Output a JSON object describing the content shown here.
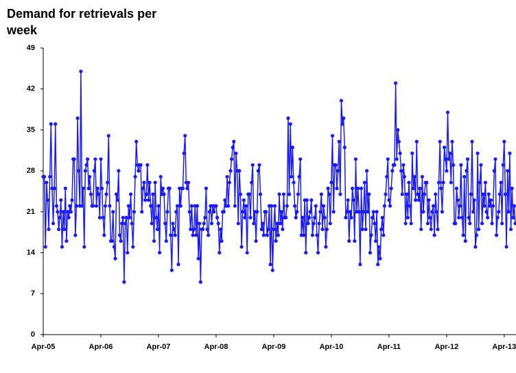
{
  "chart_data": {
    "type": "line",
    "title": "Demand for retrievals per week",
    "x": [
      0,
      1,
      2,
      3,
      4,
      5,
      6,
      7,
      8,
      9,
      10,
      11,
      12,
      13,
      14,
      15,
      16,
      17,
      18,
      19,
      20,
      21,
      22,
      23,
      24,
      25,
      26,
      27,
      28,
      29,
      30,
      31,
      32,
      33,
      34,
      35,
      36,
      37,
      38,
      39,
      40,
      41,
      42,
      43,
      44,
      45,
      46,
      47,
      48,
      49,
      50,
      51,
      52,
      53,
      54,
      55,
      56,
      57,
      58,
      59,
      60,
      61,
      62,
      63,
      64,
      65,
      66,
      67,
      68,
      69,
      70,
      71,
      72,
      73,
      74,
      75,
      76,
      77,
      78,
      79,
      80,
      81,
      82,
      83,
      84,
      85,
      86,
      87,
      88,
      89,
      90,
      91,
      92,
      93,
      94,
      95,
      96,
      97,
      98,
      99,
      100,
      101,
      102,
      103,
      104,
      105,
      106,
      107,
      108,
      109,
      110,
      111,
      112,
      113,
      114,
      115,
      116,
      117,
      118,
      119,
      120,
      121,
      122,
      123,
      124,
      125,
      126,
      127,
      128,
      129,
      130,
      131,
      132,
      133,
      134,
      135,
      136,
      137,
      138,
      139,
      140,
      141,
      142,
      143,
      144,
      145,
      146,
      147,
      148,
      149,
      150,
      151,
      152,
      153,
      154,
      155,
      156,
      157,
      158,
      159,
      160,
      161,
      162,
      163,
      164,
      165,
      166,
      167,
      168,
      169,
      170,
      171,
      172,
      173,
      174,
      175,
      176,
      177,
      178,
      179,
      180,
      181,
      182,
      183,
      184,
      185,
      186,
      187,
      188,
      189,
      190,
      191,
      192,
      193,
      194,
      195,
      196,
      197,
      198,
      199,
      200,
      201,
      202,
      203,
      204,
      205,
      206,
      207,
      208,
      209,
      210,
      211,
      212,
      213,
      214,
      215,
      216,
      217,
      218,
      219,
      220,
      221,
      222,
      223,
      224,
      225,
      226,
      227,
      228,
      229,
      230,
      231,
      232,
      233,
      234,
      235,
      236,
      237,
      238,
      239,
      240,
      241,
      242,
      243,
      244,
      245,
      246,
      247,
      248,
      249,
      250,
      251,
      252,
      253,
      254,
      255,
      256,
      257,
      258,
      259,
      260,
      261,
      262,
      263,
      264,
      265,
      266,
      267,
      268,
      269,
      270,
      271,
      272,
      273,
      274,
      275,
      276,
      277,
      278,
      279,
      280,
      281,
      282,
      283,
      284,
      285,
      286,
      287,
      288,
      289,
      290,
      291,
      292,
      293,
      294,
      295,
      296,
      297,
      298,
      299,
      300,
      301,
      302,
      303,
      304,
      305,
      306,
      307,
      308,
      309,
      310,
      311,
      312,
      313,
      314,
      315,
      316,
      317,
      318,
      319,
      320,
      321,
      322,
      323,
      324,
      325,
      326,
      327,
      328,
      329,
      330,
      331,
      332,
      333,
      334,
      335,
      336,
      337,
      338,
      339,
      340,
      341,
      342,
      343,
      344,
      345,
      346,
      347,
      348,
      349,
      350,
      351,
      352,
      353,
      354,
      355,
      356,
      357,
      358,
      359,
      360,
      361,
      362,
      363,
      364,
      365,
      366,
      367,
      368,
      369,
      370,
      371,
      372,
      373,
      374,
      375,
      376,
      377,
      378,
      379,
      380,
      381,
      382,
      383,
      384,
      385,
      386,
      387,
      388,
      389,
      390,
      391,
      392,
      393,
      394,
      395,
      396,
      397,
      398,
      399,
      400,
      401,
      402,
      403,
      404,
      405,
      406,
      407,
      408,
      409,
      410,
      411,
      412,
      413,
      414,
      415,
      416,
      417,
      418,
      419,
      420,
      421,
      422,
      423,
      424,
      425,
      426
    ],
    "series": [
      {
        "color": "#1a1aff",
        "values": [
          27,
          27,
          15,
          26,
          23,
          18,
          27,
          36,
          25,
          19,
          25,
          36,
          22,
          21,
          18,
          20,
          23,
          15,
          21,
          18,
          25,
          16,
          21,
          20,
          22,
          21,
          23,
          30,
          30,
          17,
          22,
          37,
          28,
          22,
          45,
          22,
          25,
          15,
          28,
          29,
          30,
          25,
          27,
          24,
          22,
          22,
          28,
          30,
          22,
          25,
          24,
          20,
          30,
          25,
          20,
          17,
          22,
          24,
          26,
          34,
          22,
          16,
          16,
          21,
          15,
          13,
          24,
          23,
          28,
          17,
          16,
          19,
          20,
          9,
          19,
          20,
          14,
          22,
          20,
          24,
          19,
          15,
          21,
          27,
          33,
          29,
          28,
          29,
          29,
          21,
          25,
          26,
          23,
          24,
          29,
          23,
          26,
          22,
          19,
          24,
          16,
          26,
          20,
          18,
          22,
          14,
          27,
          24,
          25,
          24,
          19,
          16,
          21,
          25,
          25,
          17,
          11,
          19,
          18,
          17,
          21,
          22,
          12,
          25,
          22,
          25,
          25,
          31,
          34,
          26,
          25,
          26,
          21,
          18,
          22,
          17,
          18,
          22,
          17,
          22,
          13,
          19,
          9,
          18,
          18,
          19,
          20,
          25,
          18,
          17,
          21,
          22,
          19,
          22,
          21,
          22,
          22,
          20,
          19,
          14,
          18,
          16,
          21,
          21,
          23,
          22,
          27,
          22,
          26,
          28,
          30,
          32,
          33,
          22,
          31,
          28,
          19,
          28,
          24,
          15,
          21,
          23,
          20,
          22,
          14,
          24,
          24,
          20,
          26,
          29,
          19,
          21,
          16,
          21,
          28,
          29,
          24,
          18,
          19,
          17,
          21,
          21,
          17,
          18,
          22,
          12,
          22,
          11,
          18,
          22,
          16,
          19,
          17,
          24,
          19,
          21,
          18,
          24,
          20,
          20,
          22,
          37,
          24,
          36,
          27,
          32,
          26,
          22,
          20,
          21,
          24,
          27,
          30,
          17,
          20,
          17,
          23,
          14,
          23,
          19,
          20,
          21,
          23,
          17,
          19,
          20,
          22,
          17,
          14,
          19,
          21,
          24,
          18,
          22,
          20,
          15,
          18,
          25,
          24,
          19,
          26,
          34,
          21,
          29,
          29,
          25,
          28,
          33,
          24,
          40,
          36,
          37,
          32,
          20,
          21,
          23,
          16,
          21,
          20,
          25,
          23,
          16,
          30,
          21,
          25,
          21,
          12,
          25,
          18,
          21,
          26,
          18,
          28,
          21,
          24,
          14,
          17,
          20,
          21,
          19,
          16,
          21,
          12,
          15,
          13,
          18,
          20,
          17,
          22,
          24,
          27,
          30,
          23,
          22,
          25,
          28,
          29,
          29,
          43,
          30,
          35,
          33,
          31,
          28,
          24,
          29,
          27,
          19,
          24,
          20,
          26,
          22,
          19,
          31,
          25,
          27,
          23,
          33,
          24,
          23,
          25,
          18,
          27,
          21,
          24,
          26,
          26,
          19,
          23,
          20,
          18,
          21,
          22,
          17,
          24,
          21,
          18,
          26,
          33,
          25,
          21,
          26,
          32,
          30,
          28,
          38,
          30,
          31,
          26,
          33,
          29,
          19,
          19,
          25,
          23,
          20,
          22,
          29,
          20,
          17,
          27,
          16,
          28,
          30,
          20,
          19,
          24,
          33,
          21,
          23,
          15,
          17,
          31,
          18,
          26,
          29,
          19,
          24,
          22,
          26,
          21,
          20,
          24,
          22,
          23,
          19,
          22,
          28,
          30,
          17,
          20,
          21,
          24,
          26,
          19,
          29,
          33,
          24,
          15,
          28,
          21,
          31,
          18,
          25,
          20,
          22,
          19
        ]
      }
    ],
    "xlim": [
      0,
      426
    ],
    "xticks": [
      {
        "value": 0,
        "label": "Apr-05"
      },
      {
        "value": 52,
        "label": "Apr-06"
      },
      {
        "value": 104,
        "label": "Apr-07"
      },
      {
        "value": 156,
        "label": "Apr-08"
      },
      {
        "value": 208,
        "label": "Apr-09"
      },
      {
        "value": 260,
        "label": "Apr-10"
      },
      {
        "value": 312,
        "label": "Apr-11"
      },
      {
        "value": 364,
        "label": "Apr-12"
      },
      {
        "value": 416,
        "label": "Apr-13"
      }
    ],
    "ylim": [
      0,
      49
    ],
    "yticks": [
      0,
      7,
      14,
      21,
      28,
      35,
      42,
      49
    ],
    "grid": false
  }
}
